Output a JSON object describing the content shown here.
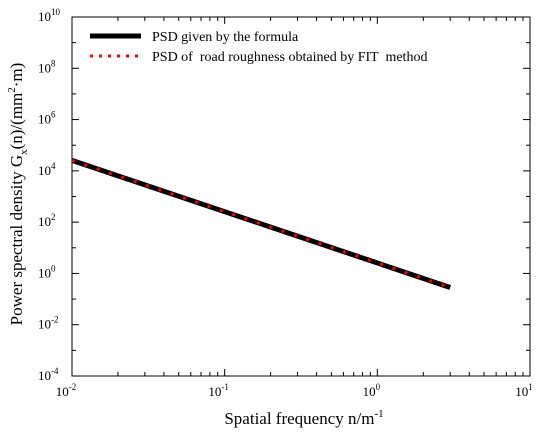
{
  "chart_data": {
    "type": "line",
    "title": "",
    "xlabel": {
      "main": "Spatial frequency n/m",
      "sup": "-1"
    },
    "ylabel": {
      "p1": "Power spectral density G",
      "sub1": "x",
      "p2": "(n)/(mm",
      "sup1": "2",
      "p3": "·m)"
    },
    "x_scale": "log",
    "y_scale": "log",
    "xlim": [
      0.01,
      10
    ],
    "ylim": [
      0.0001,
      10000000000
    ],
    "x_ticks": [
      {
        "value": 0.01,
        "base": "10",
        "exp": "-2"
      },
      {
        "value": 0.1,
        "base": "10",
        "exp": "-1"
      },
      {
        "value": 1,
        "base": "10",
        "exp": "0"
      },
      {
        "value": 10,
        "base": "10",
        "exp": "1"
      }
    ],
    "y_ticks": [
      {
        "value": 0.0001,
        "base": "10",
        "exp": "-4"
      },
      {
        "value": 0.01,
        "base": "10",
        "exp": "-2"
      },
      {
        "value": 1,
        "base": "10",
        "exp": "0"
      },
      {
        "value": 100,
        "base": "10",
        "exp": "2"
      },
      {
        "value": 10000,
        "base": "10",
        "exp": "4"
      },
      {
        "value": 1000000,
        "base": "10",
        "exp": "6"
      },
      {
        "value": 100000000,
        "base": "10",
        "exp": "8"
      },
      {
        "value": 10000000000,
        "base": "10",
        "exp": "10"
      }
    ],
    "grid": false,
    "legend_position": "top-left",
    "series": [
      {
        "name": "PSD given by the formula",
        "style": "solid",
        "color": "#000000",
        "x": [
          0.01,
          3
        ],
        "y": [
          25600,
          0.284
        ]
      },
      {
        "name": "PSD of  road roughness obtained by FIT  method",
        "style": "dotted",
        "color": "#ff0000",
        "x": [
          0.01,
          3
        ],
        "y": [
          25600,
          0.284
        ]
      }
    ]
  }
}
